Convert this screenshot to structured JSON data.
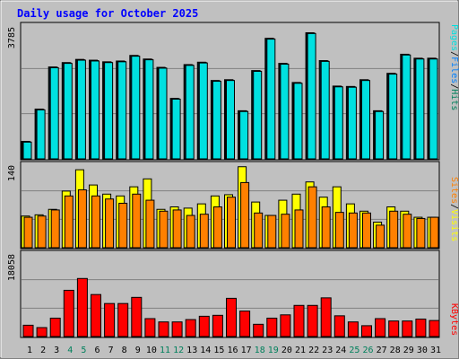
{
  "title": "Daily usage for October 2025",
  "colors": {
    "hits": "#00805c",
    "files": "#0080ff",
    "pages": "#00e0e0",
    "visits": "#ffff00",
    "sites": "#ff8000",
    "kbytes": "#ff0000",
    "weekend_day": "#00805c",
    "title": "#0000ff",
    "panel_bg": "#c0c0c0",
    "grid": "#808080"
  },
  "legend": {
    "top": [
      {
        "text": "Pages",
        "color": "#00e0e0"
      },
      {
        "text": "/",
        "color": "#000000"
      },
      {
        "text": "Files",
        "color": "#0080ff"
      },
      {
        "text": "/",
        "color": "#000000"
      },
      {
        "text": "Hits",
        "color": "#00805c"
      }
    ],
    "middle": [
      {
        "text": "Sites",
        "color": "#ff8000"
      },
      {
        "text": "/",
        "color": "#000000"
      },
      {
        "text": "Visits",
        "color": "#ffff00"
      }
    ],
    "bottom": [
      {
        "text": "KBytes",
        "color": "#ff0000"
      }
    ]
  },
  "chart_data": [
    {
      "type": "bar",
      "panel": "hits-files-pages",
      "y_max_label": "3785",
      "ylim": [
        0,
        3785
      ],
      "categories": [
        "1",
        "2",
        "3",
        "4",
        "5",
        "6",
        "7",
        "8",
        "9",
        "10",
        "11",
        "12",
        "13",
        "14",
        "15",
        "16",
        "17",
        "18",
        "19",
        "20",
        "21",
        "22",
        "23",
        "24",
        "25",
        "26",
        "27",
        "28",
        "29",
        "30",
        "31"
      ],
      "weekend_days": [
        "4",
        "5",
        "11",
        "12",
        "18",
        "19",
        "25",
        "26"
      ],
      "series": [
        {
          "name": "Hits",
          "values": [
            489,
            1389,
            2567,
            2689,
            2778,
            2756,
            2711,
            2733,
            2889,
            2789,
            2556,
            1689,
            2633,
            2700,
            2189,
            2211,
            1344,
            2466,
            3367,
            2667,
            2133,
            3522,
            2744,
            2033,
            2022,
            2211,
            1344,
            2389,
            2922,
            2811,
            2812
          ]
        },
        {
          "name": "Files",
          "values": [
            478,
            1378,
            2556,
            2678,
            2767,
            2744,
            2700,
            2722,
            2878,
            2778,
            2544,
            1678,
            2622,
            2689,
            2178,
            2200,
            1333,
            2456,
            3356,
            2656,
            2122,
            3511,
            2733,
            2022,
            2011,
            2200,
            1333,
            2378,
            2911,
            2800,
            2800
          ]
        },
        {
          "name": "Pages",
          "values": [
            467,
            1367,
            2544,
            2667,
            2756,
            2733,
            2689,
            2711,
            2867,
            2767,
            2533,
            1667,
            2611,
            2678,
            2167,
            2189,
            1322,
            2444,
            3344,
            2644,
            2111,
            3500,
            2722,
            2011,
            2000,
            2189,
            1322,
            2367,
            2900,
            2789,
            2789
          ]
        }
      ]
    },
    {
      "type": "bar",
      "panel": "visits-sites",
      "y_max_label": "140",
      "ylim": [
        0,
        140
      ],
      "categories": [
        "1",
        "2",
        "3",
        "4",
        "5",
        "6",
        "7",
        "8",
        "9",
        "10",
        "11",
        "12",
        "13",
        "14",
        "15",
        "16",
        "17",
        "18",
        "19",
        "20",
        "21",
        "22",
        "23",
        "24",
        "25",
        "26",
        "27",
        "28",
        "29",
        "30",
        "31"
      ],
      "series": [
        {
          "name": "Visits",
          "values": [
            52,
            54,
            63,
            93,
            128,
            103,
            88,
            85,
            100,
            113,
            63,
            67,
            65,
            72,
            85,
            87,
            133,
            75,
            53,
            78,
            88,
            108,
            83,
            100,
            72,
            60,
            42,
            67,
            60,
            50,
            50
          ]
        },
        {
          "name": "Sites",
          "values": [
            50,
            52,
            62,
            85,
            95,
            85,
            80,
            73,
            88,
            78,
            60,
            62,
            53,
            55,
            67,
            83,
            107,
            57,
            53,
            55,
            62,
            100,
            67,
            58,
            57,
            57,
            37,
            60,
            55,
            48,
            50
          ]
        }
      ]
    },
    {
      "type": "bar",
      "panel": "kbytes",
      "y_max_label": "18058",
      "ylim": [
        0,
        18058
      ],
      "categories": [
        "1",
        "2",
        "3",
        "4",
        "5",
        "6",
        "7",
        "8",
        "9",
        "10",
        "11",
        "12",
        "13",
        "14",
        "15",
        "16",
        "17",
        "18",
        "19",
        "20",
        "21",
        "22",
        "23",
        "24",
        "25",
        "26",
        "27",
        "28",
        "29",
        "30",
        "31"
      ],
      "series": [
        {
          "name": "KBytes",
          "values": [
            2400,
            1900,
            3900,
            9800,
            12300,
            8900,
            7000,
            7000,
            8300,
            3800,
            3100,
            3100,
            3600,
            4300,
            4500,
            8100,
            5400,
            2600,
            3900,
            4600,
            6600,
            6600,
            8200,
            4400,
            3100,
            2300,
            3800,
            3300,
            3300,
            3700,
            3400
          ]
        }
      ]
    }
  ]
}
